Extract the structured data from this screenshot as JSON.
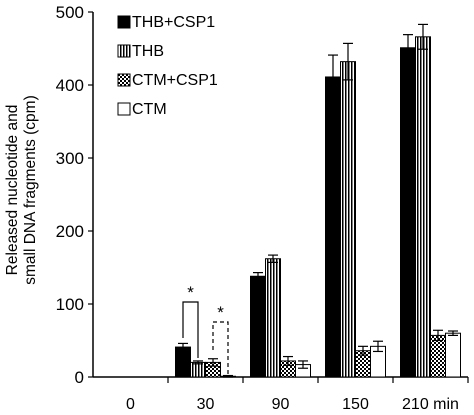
{
  "chart_data": {
    "type": "bar",
    "title": "",
    "xlabel": "",
    "ylabel": "Released nucleotide and small DNA fragments (cpm)",
    "ylabel_lines": [
      "Released nucleotide and",
      "small DNA fragments (cpm)"
    ],
    "ylim": [
      0,
      500
    ],
    "yticks": [
      0,
      100,
      200,
      300,
      400,
      500
    ],
    "grid": false,
    "legend_position": "top-left",
    "categories": [
      "0",
      "30",
      "90",
      "150",
      "210 min"
    ],
    "series": [
      {
        "name": "THB+CSP1",
        "pattern": "solid",
        "values": [
          0,
          41,
          138,
          411,
          451
        ],
        "errors": [
          0,
          5,
          5,
          30,
          18
        ]
      },
      {
        "name": "THB",
        "pattern": "vertical-stripes",
        "values": [
          0,
          20,
          162,
          432,
          466
        ],
        "errors": [
          0,
          2,
          5,
          25,
          17
        ]
      },
      {
        "name": "CTM+CSP1",
        "pattern": "checker",
        "values": [
          0,
          20,
          22,
          36,
          57
        ],
        "errors": [
          0,
          5,
          6,
          6,
          7
        ]
      },
      {
        "name": "CTM",
        "pattern": "open",
        "values": [
          0,
          1,
          17,
          42,
          60
        ],
        "errors": [
          0,
          1,
          5,
          7,
          3
        ]
      }
    ],
    "annotations": [
      {
        "text": "*",
        "category": "30",
        "between": [
          "THB+CSP1",
          "THB"
        ],
        "bracket": "solid"
      },
      {
        "text": "*",
        "category": "30",
        "between": [
          "CTM+CSP1",
          "CTM"
        ],
        "bracket": "dashed"
      }
    ]
  }
}
